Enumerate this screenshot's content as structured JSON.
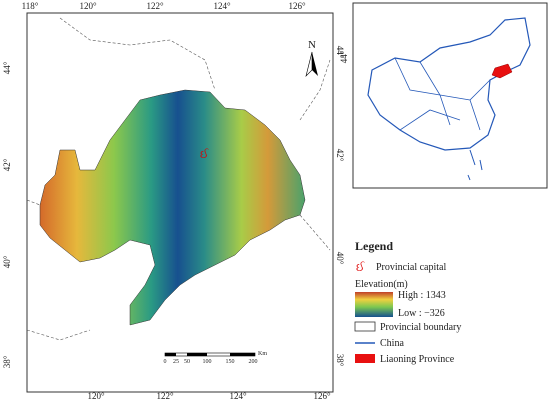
{
  "map": {
    "top_ticks": [
      "118°",
      "120°",
      "122°",
      "124°",
      "126°"
    ],
    "bottom_ticks": [
      "120°",
      "122°",
      "124°",
      "126°"
    ],
    "left_ticks": [
      "44°",
      "42°",
      "40°",
      "38°"
    ],
    "right_ticks": [
      "44°",
      "42°",
      "40°",
      "38°"
    ],
    "north": "N",
    "scale_labels": [
      "0",
      "25",
      "50",
      "100",
      "150",
      "200"
    ],
    "scale_unit": "Km"
  },
  "inset": {
    "left_tick": "44°"
  },
  "legend": {
    "title": "Legend",
    "capital": "Provincial capital",
    "elevation_title": "Elevation(m)",
    "high": "High : 1343",
    "low": "Low : −326",
    "boundary": "Provincial boundary",
    "china": "China",
    "province": "Liaoning Province"
  }
}
